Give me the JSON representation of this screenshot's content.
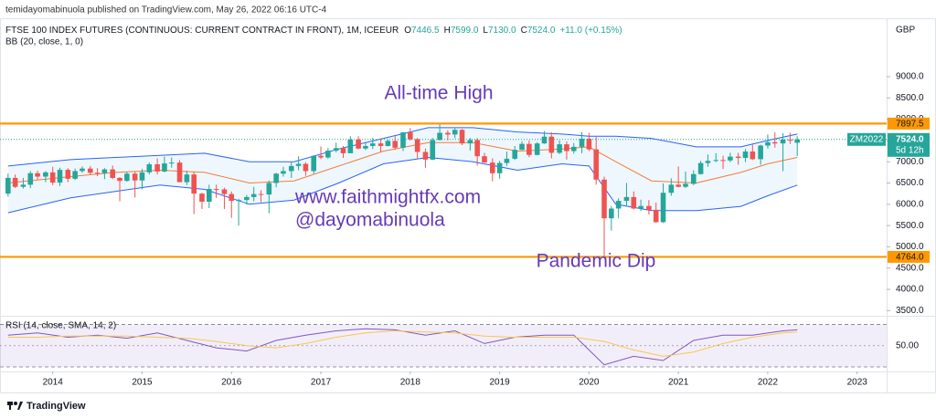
{
  "publisher": "temidayomabinuola published on TradingView.com, May 26, 2022 06:16 UTC-4",
  "footer": {
    "brand": "TradingView"
  },
  "chart_data": [
    {
      "type": "candlestick",
      "symbol": "FTSE 100 INDEX FUTURES (CONTINUOUS: CURRENT CONTRACT IN FRONT), 1M, ICEEUR",
      "ohlc_legend": [
        {
          "key": "O",
          "text": "7446.5"
        },
        {
          "key": "H",
          "text": "7599.0"
        },
        {
          "key": "L",
          "text": "7130.0"
        },
        {
          "key": "C",
          "text": "7524.0"
        }
      ],
      "change": "+11.0 (+0.15%)",
      "indicator": "BB (20, close, 1, 0)",
      "currency": "GBP",
      "up_color": "#26a69a",
      "down_color": "#ef5350",
      "x": [
        2013.5,
        2013.58,
        2013.67,
        2013.75,
        2013.83,
        2013.92,
        2014,
        2014.08,
        2014.17,
        2014.25,
        2014.33,
        2014.42,
        2014.5,
        2014.58,
        2014.67,
        2014.75,
        2014.83,
        2014.92,
        2015,
        2015.08,
        2015.17,
        2015.25,
        2015.33,
        2015.42,
        2015.5,
        2015.58,
        2015.67,
        2015.75,
        2015.83,
        2015.92,
        2016,
        2016.08,
        2016.17,
        2016.25,
        2016.33,
        2016.42,
        2016.5,
        2016.58,
        2016.67,
        2016.75,
        2016.83,
        2016.92,
        2017,
        2017.08,
        2017.17,
        2017.25,
        2017.33,
        2017.42,
        2017.5,
        2017.58,
        2017.67,
        2017.75,
        2017.83,
        2017.92,
        2018,
        2018.08,
        2018.17,
        2018.25,
        2018.33,
        2018.42,
        2018.5,
        2018.58,
        2018.67,
        2018.75,
        2018.83,
        2018.92,
        2019,
        2019.08,
        2019.17,
        2019.25,
        2019.33,
        2019.42,
        2019.5,
        2019.58,
        2019.67,
        2019.75,
        2019.83,
        2019.92,
        2020,
        2020.08,
        2020.17,
        2020.25,
        2020.33,
        2020.42,
        2020.5,
        2020.58,
        2020.67,
        2020.75,
        2020.83,
        2020.92,
        2021,
        2021.08,
        2021.17,
        2021.25,
        2021.33,
        2021.42,
        2021.5,
        2021.58,
        2021.67,
        2021.75,
        2021.83,
        2021.92,
        2022,
        2022.08,
        2022.17,
        2022.25,
        2022.33
      ],
      "open": [
        6250,
        6620,
        6410,
        6460,
        6730,
        6650,
        6750,
        6510,
        6810,
        6600,
        6780,
        6840,
        6740,
        6730,
        6820,
        6620,
        6550,
        6720,
        6560,
        6750,
        6940,
        6770,
        6960,
        6980,
        6520,
        6700,
        6250,
        6060,
        6360,
        6350,
        6240,
        6080,
        6100,
        6170,
        6240,
        6230,
        6500,
        6720,
        6780,
        6900,
        6950,
        6780,
        7140,
        7100,
        7260,
        7320,
        7200,
        7520,
        7310,
        7370,
        7430,
        7370,
        7490,
        7330,
        7690,
        7530,
        7230,
        7050,
        7510,
        7680,
        7640,
        7750,
        7430,
        7510,
        7130,
        6980,
        6730,
        6970,
        7070,
        7280,
        7420,
        7160,
        7430,
        7590,
        7210,
        7410,
        7250,
        7350,
        7540,
        7290,
        6580,
        5670,
        5900,
        6080,
        6170,
        5900,
        5960,
        5870,
        5580,
        6270,
        6460,
        6410,
        6480,
        6710,
        6970,
        7020,
        7040,
        7030,
        7120,
        7090,
        7240,
        7060,
        7380,
        7460,
        7430,
        7520,
        7446.5
      ],
      "high": [
        6720,
        6700,
        6620,
        6780,
        6790,
        6780,
        6880,
        6860,
        6850,
        6840,
        6890,
        6900,
        6850,
        6850,
        6910,
        6640,
        6760,
        6760,
        6830,
        6980,
        7080,
        7120,
        7100,
        7040,
        6790,
        6760,
        6270,
        6460,
        6460,
        6390,
        6300,
        6130,
        6220,
        6410,
        6330,
        6560,
        6740,
        6880,
        6990,
        7130,
        6990,
        7150,
        7360,
        7320,
        7450,
        7370,
        7600,
        7600,
        7470,
        7560,
        7550,
        7520,
        7600,
        7700,
        7790,
        7560,
        7310,
        7560,
        7897.5,
        7740,
        7790,
        7770,
        7560,
        7560,
        7210,
        7080,
        7020,
        7240,
        7370,
        7480,
        7500,
        7460,
        7720,
        7690,
        7500,
        7480,
        7440,
        7700,
        7680,
        7580,
        6650,
        5960,
        6140,
        6500,
        6300,
        6110,
        6100,
        6040,
        6490,
        6610,
        6890,
        6770,
        6800,
        7020,
        7170,
        7200,
        7140,
        7210,
        7210,
        7300,
        7400,
        7400,
        7640,
        7690,
        7670,
        7680,
        7599
      ],
      "low": [
        6180,
        6380,
        6370,
        6380,
        6580,
        6520,
        6450,
        6430,
        6520,
        6570,
        6740,
        6700,
        6660,
        6590,
        6590,
        6070,
        6530,
        6160,
        6350,
        6700,
        6700,
        6750,
        6860,
        6520,
        6450,
        5770,
        5890,
        5910,
        6150,
        5890,
        5680,
        5500,
        5990,
        6070,
        6050,
        5790,
        6400,
        6650,
        6620,
        6800,
        6670,
        6720,
        7060,
        7070,
        7220,
        7090,
        7200,
        7290,
        7270,
        7300,
        7230,
        7360,
        7280,
        7250,
        7500,
        7060,
        6860,
        7040,
        7500,
        7500,
        7550,
        7390,
        7260,
        6910,
        6980,
        6540,
        6600,
        6900,
        7040,
        7270,
        7110,
        7150,
        7420,
        7080,
        7180,
        7050,
        7190,
        7200,
        7250,
        6460,
        4764,
        5380,
        5670,
        5950,
        5880,
        5840,
        5760,
        5560,
        5560,
        6200,
        6400,
        6380,
        6450,
        6700,
        6880,
        6990,
        6830,
        6990,
        6930,
        6990,
        7040,
        6930,
        7310,
        7330,
        6780,
        7420,
        7130
      ],
      "close": [
        6620,
        6410,
        6460,
        6730,
        6650,
        6750,
        6510,
        6810,
        6600,
        6780,
        6840,
        6740,
        6730,
        6820,
        6620,
        6550,
        6720,
        6560,
        6750,
        6940,
        6770,
        6960,
        6980,
        6520,
        6700,
        6250,
        6060,
        6360,
        6350,
        6240,
        6080,
        6100,
        6170,
        6240,
        6230,
        6500,
        6720,
        6780,
        6900,
        6950,
        6780,
        7140,
        7100,
        7260,
        7320,
        7200,
        7520,
        7310,
        7370,
        7430,
        7370,
        7490,
        7330,
        7690,
        7530,
        7230,
        7050,
        7510,
        7680,
        7640,
        7750,
        7430,
        7510,
        7130,
        6980,
        6730,
        6970,
        7070,
        7280,
        7420,
        7160,
        7430,
        7590,
        7210,
        7410,
        7250,
        7350,
        7540,
        7290,
        6580,
        5670,
        5900,
        6080,
        6170,
        5900,
        5960,
        5870,
        5580,
        6270,
        6460,
        6410,
        6480,
        6710,
        6970,
        7020,
        7040,
        7030,
        7120,
        7090,
        7240,
        7060,
        7380,
        7460,
        7430,
        7520,
        7513,
        7524
      ],
      "xlim": [
        2013.41,
        2023.33
      ],
      "xticks": [
        2014,
        2015,
        2016,
        2017,
        2018,
        2019,
        2020,
        2021,
        2022,
        2023
      ],
      "ylim": [
        3400,
        10330
      ],
      "yticks": [
        {
          "value": 3500,
          "label": "3500.0"
        },
        {
          "value": 4000,
          "label": "4000.0"
        },
        {
          "value": 4500,
          "label": "4500.0"
        },
        {
          "value": 5000,
          "label": "5000.0"
        },
        {
          "value": 5500,
          "label": "5500.0"
        },
        {
          "value": 6000,
          "label": "6000.0"
        },
        {
          "value": 6500,
          "label": "6500.0"
        },
        {
          "value": 7000,
          "label": "7000.0"
        },
        {
          "value": 7500,
          "label": "7500.0"
        },
        {
          "value": 8000,
          "label": "8000.0"
        },
        {
          "value": 8500,
          "label": "8500.0"
        },
        {
          "value": 9000,
          "label": "9000.0"
        }
      ],
      "grid": false,
      "bands": {
        "x": [
          2013.5,
          2014.2,
          2014.7,
          2015.2,
          2015.7,
          2016.2,
          2016.7,
          2017.2,
          2017.7,
          2018.2,
          2018.7,
          2019.2,
          2019.7,
          2020.0,
          2020.3,
          2020.7,
          2021.2,
          2021.7,
          2022.0,
          2022.33
        ],
        "upper": [
          6900,
          7050,
          7100,
          7150,
          7200,
          7000,
          7000,
          7300,
          7550,
          7800,
          7800,
          7700,
          7650,
          7600,
          7600,
          7550,
          7350,
          7350,
          7500,
          7650
        ],
        "middle": [
          6500,
          6650,
          6750,
          6800,
          6750,
          6500,
          6550,
          6900,
          7250,
          7450,
          7450,
          7250,
          7300,
          7350,
          7000,
          6550,
          6500,
          6750,
          6950,
          7100
        ],
        "lower": [
          5800,
          6150,
          6300,
          6450,
          6350,
          6000,
          6100,
          6500,
          6950,
          7100,
          7000,
          6800,
          6950,
          6900,
          6000,
          5850,
          5850,
          5950,
          6200,
          6450
        ],
        "band_color": "#2962ff",
        "middle_color": "#f57c3a",
        "fill": "#2196f3"
      },
      "levels": [
        7897.5,
        {
          "value": 4764,
          "label": "4764.0"
        }
      ],
      "level_color": "#ff9800",
      "last": {
        "value": 7524,
        "label": "7524.0"
      },
      "last_color": "#26a69a",
      "contract": "ZM2022",
      "countdown": "5d 12h",
      "annotations": [
        "All-time High",
        "www.faithmightfx.com",
        "@dayomabinuola",
        "Pandemic Dip"
      ],
      "annotation_color": "#673ab7"
    },
    {
      "type": "line",
      "title": "RSI (14, close, SMA, 14, 2)",
      "x": [
        2013.5,
        2013.83,
        2014.17,
        2014.5,
        2014.83,
        2015.17,
        2015.5,
        2015.83,
        2016.17,
        2016.5,
        2016.83,
        2017.17,
        2017.5,
        2017.83,
        2018.17,
        2018.5,
        2018.83,
        2019.17,
        2019.5,
        2019.83,
        2020.17,
        2020.5,
        2020.83,
        2021.17,
        2021.5,
        2021.83,
        2022.17,
        2022.33
      ],
      "series": [
        {
          "color": "#7e57c2",
          "values": [
            60,
            62,
            58,
            60,
            57,
            62,
            55,
            48,
            45,
            55,
            60,
            64,
            66,
            65,
            60,
            64,
            52,
            58,
            60,
            60,
            32,
            40,
            36,
            55,
            60,
            60,
            64,
            65
          ]
        },
        {
          "color": "#f9c74f",
          "values": [
            58,
            58,
            59,
            59,
            59,
            58,
            57,
            54,
            50,
            48,
            52,
            58,
            62,
            64,
            63,
            62,
            59,
            58,
            58,
            58,
            54,
            46,
            40,
            44,
            52,
            58,
            62,
            63
          ]
        }
      ],
      "ylim": [
        27.4,
        76.5
      ],
      "yticks": [
        {
          "value": 50,
          "label": "50.00"
        }
      ],
      "band_levels": [
        30,
        70
      ]
    }
  ]
}
